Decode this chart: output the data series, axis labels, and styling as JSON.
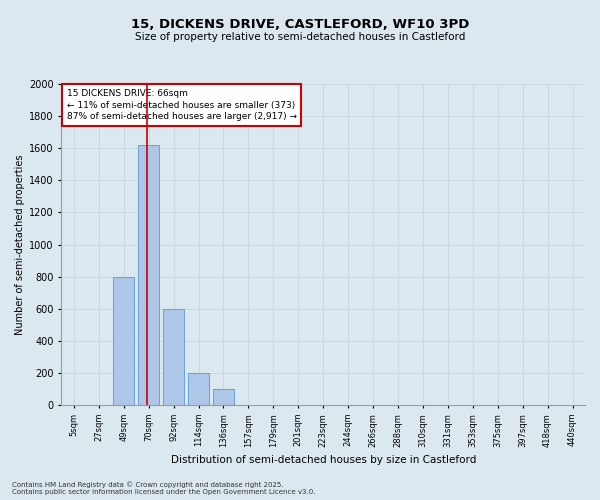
{
  "title": "15, DICKENS DRIVE, CASTLEFORD, WF10 3PD",
  "subtitle": "Size of property relative to semi-detached houses in Castleford",
  "xlabel": "Distribution of semi-detached houses by size in Castleford",
  "ylabel": "Number of semi-detached properties",
  "bin_labels": [
    "5sqm",
    "27sqm",
    "49sqm",
    "70sqm",
    "92sqm",
    "114sqm",
    "136sqm",
    "157sqm",
    "179sqm",
    "201sqm",
    "223sqm",
    "244sqm",
    "266sqm",
    "288sqm",
    "310sqm",
    "331sqm",
    "353sqm",
    "375sqm",
    "397sqm",
    "418sqm",
    "440sqm"
  ],
  "bar_values": [
    0,
    0,
    800,
    1620,
    600,
    200,
    100,
    0,
    0,
    0,
    0,
    0,
    0,
    0,
    0,
    0,
    0,
    0,
    0,
    0,
    0
  ],
  "bar_color": "#aec6e8",
  "bar_edge_color": "#5b9bd5",
  "property_line_x": 2.95,
  "annotation_title": "15 DICKENS DRIVE: 66sqm",
  "annotation_line1": "← 11% of semi-detached houses are smaller (373)",
  "annotation_line2": "87% of semi-detached houses are larger (2,917) →",
  "annotation_box_color": "#ffffff",
  "annotation_box_edge": "#cc0000",
  "red_line_color": "#cc0000",
  "ylim": [
    0,
    2000
  ],
  "yticks": [
    0,
    200,
    400,
    600,
    800,
    1000,
    1200,
    1400,
    1600,
    1800,
    2000
  ],
  "grid_color": "#c8d4e0",
  "bg_color": "#dce8f0",
  "fig_bg_color": "#dce8f0",
  "footnote1": "Contains HM Land Registry data © Crown copyright and database right 2025.",
  "footnote2": "Contains public sector information licensed under the Open Government Licence v3.0."
}
